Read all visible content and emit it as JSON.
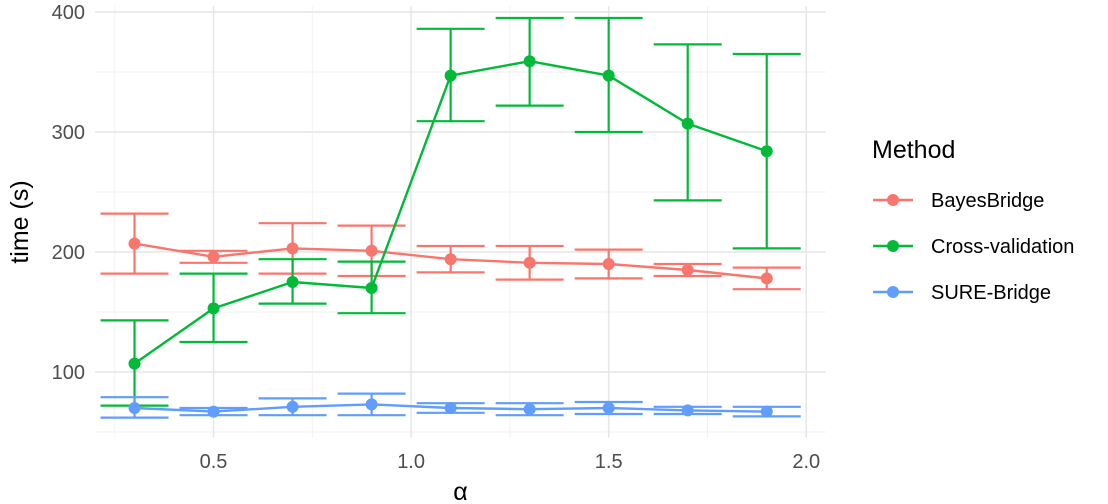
{
  "chart_data": {
    "type": "line",
    "xlabel": "α",
    "ylabel": "time (s)",
    "xlim": [
      0.2,
      2.05
    ],
    "ylim": [
      45,
      405
    ],
    "x_ticks": [
      "0.5",
      "1.0",
      "1.5",
      "2.0"
    ],
    "y_ticks": [
      "100",
      "200",
      "300",
      "400"
    ],
    "grid": true,
    "legend_title": "Method",
    "legend_position": "right",
    "x": [
      0.3,
      0.5,
      0.7,
      0.9,
      1.1,
      1.3,
      1.5,
      1.7,
      1.9
    ],
    "series": [
      {
        "name": "BayesBridge",
        "color": "#F8766D",
        "values": [
          207,
          196,
          203,
          201,
          194,
          191,
          190,
          185,
          178
        ],
        "lower": [
          182,
          191,
          182,
          180,
          183,
          177,
          178,
          180,
          169
        ],
        "upper": [
          232,
          201,
          224,
          222,
          205,
          205,
          202,
          190,
          187
        ]
      },
      {
        "name": "Cross-validation",
        "color": "#00BA38",
        "values": [
          107,
          153,
          175,
          170,
          347,
          359,
          347,
          307,
          284
        ],
        "lower": [
          72,
          125,
          157,
          149,
          309,
          322,
          300,
          243,
          203
        ],
        "upper": [
          143,
          182,
          194,
          192,
          386,
          395,
          395,
          373,
          365
        ]
      },
      {
        "name": "SURE-Bridge",
        "color": "#619CFF",
        "values": [
          70,
          67,
          71,
          73,
          70,
          69,
          70,
          68,
          67
        ],
        "lower": [
          62,
          64,
          64,
          64,
          66,
          64,
          65,
          65,
          63
        ],
        "upper": [
          79,
          70,
          78,
          82,
          74,
          74,
          75,
          71,
          71
        ]
      }
    ]
  }
}
